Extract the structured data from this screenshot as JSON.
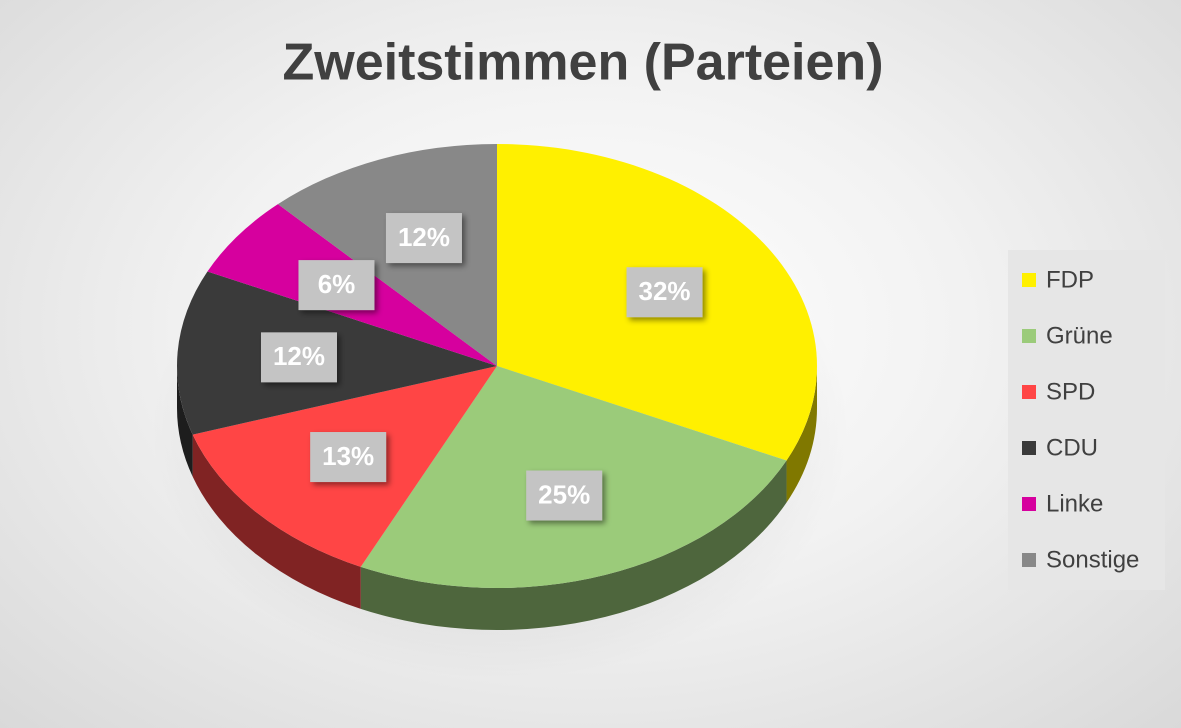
{
  "chart_data": {
    "type": "pie",
    "title": "Zweitstimmen (Parteien)",
    "categories": [
      "FDP",
      "Grüne",
      "SPD",
      "CDU",
      "Linke",
      "Sonstige"
    ],
    "values": [
      32,
      25,
      13,
      12,
      6,
      12
    ],
    "value_labels": [
      "32%",
      "25%",
      "13%",
      "12%",
      "6%",
      "12%"
    ],
    "colors": [
      "#FFF000",
      "#9BCB7A",
      "#FF4545",
      "#3A3A3A",
      "#D6009E",
      "#888888"
    ],
    "legend": "right"
  }
}
